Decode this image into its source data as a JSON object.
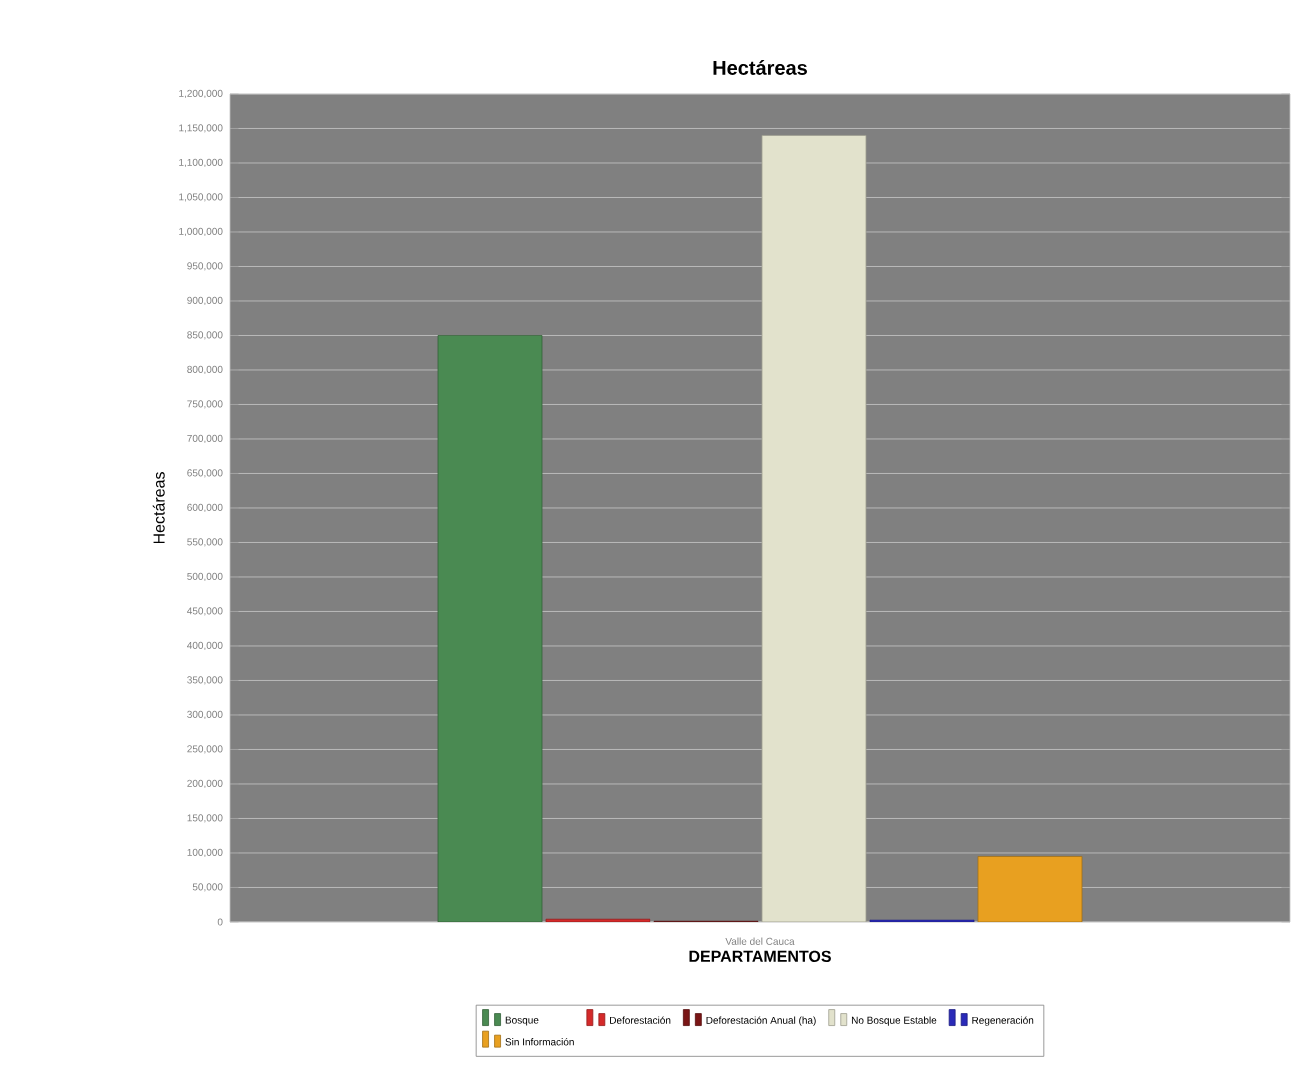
{
  "chart_data": {
    "type": "bar",
    "title": "Hectáreas",
    "xlabel": "DEPARTAMENTOS",
    "ylabel": "Hectáreas",
    "categories": [
      "Valle del Cauca"
    ],
    "series": [
      {
        "name": "Bosque",
        "color": "#4a8a52",
        "values": [
          850000
        ]
      },
      {
        "name": "Deforestación",
        "color": "#d42a2a",
        "values": [
          4000
        ]
      },
      {
        "name": "Deforestación Anual (ha)",
        "color": "#7a1515",
        "values": [
          1000
        ]
      },
      {
        "name": "No Bosque Estable",
        "color": "#e2e2cc",
        "values": [
          1140000
        ]
      },
      {
        "name": "Regeneración",
        "color": "#2a2ab8",
        "values": [
          3000
        ]
      },
      {
        "name": "Sin Información",
        "color": "#e8a020",
        "values": [
          95000
        ]
      }
    ],
    "ylim": [
      0,
      1200000
    ],
    "yticks": [
      0,
      {
        "value": 50000,
        "label": "50,000"
      },
      {
        "value": 100000,
        "label": "100,000"
      },
      {
        "value": 150000,
        "label": "150,000"
      },
      {
        "value": 200000,
        "label": "200,000"
      },
      {
        "value": 250000,
        "label": "250,000"
      },
      {
        "value": 300000,
        "label": "300,000"
      },
      {
        "value": 350000,
        "label": "350,000"
      },
      {
        "value": 400000,
        "label": "400,000"
      },
      {
        "value": 450000,
        "label": "450,000"
      },
      {
        "value": 500000,
        "label": "500,000"
      },
      {
        "value": 550000,
        "label": "550,000"
      },
      {
        "value": 600000,
        "label": "600,000"
      },
      {
        "value": 650000,
        "label": "650,000"
      },
      {
        "value": 700000,
        "label": "700,000"
      },
      {
        "value": 750000,
        "label": "750,000"
      },
      {
        "value": 800000,
        "label": "800,000"
      },
      {
        "value": 850000,
        "label": "850,000"
      },
      {
        "value": 900000,
        "label": "900,000"
      },
      {
        "value": 950000,
        "label": "950,000"
      },
      {
        "value": 1000000,
        "label": "1,000,000"
      },
      {
        "value": 1050000,
        "label": "1,050,000"
      },
      {
        "value": 1100000,
        "label": "1,100,000"
      },
      {
        "value": 1150000,
        "label": "1,150,000"
      },
      {
        "value": 1200000,
        "label": "1,200,000"
      }
    ],
    "grid": "y",
    "legend": "bottom"
  }
}
